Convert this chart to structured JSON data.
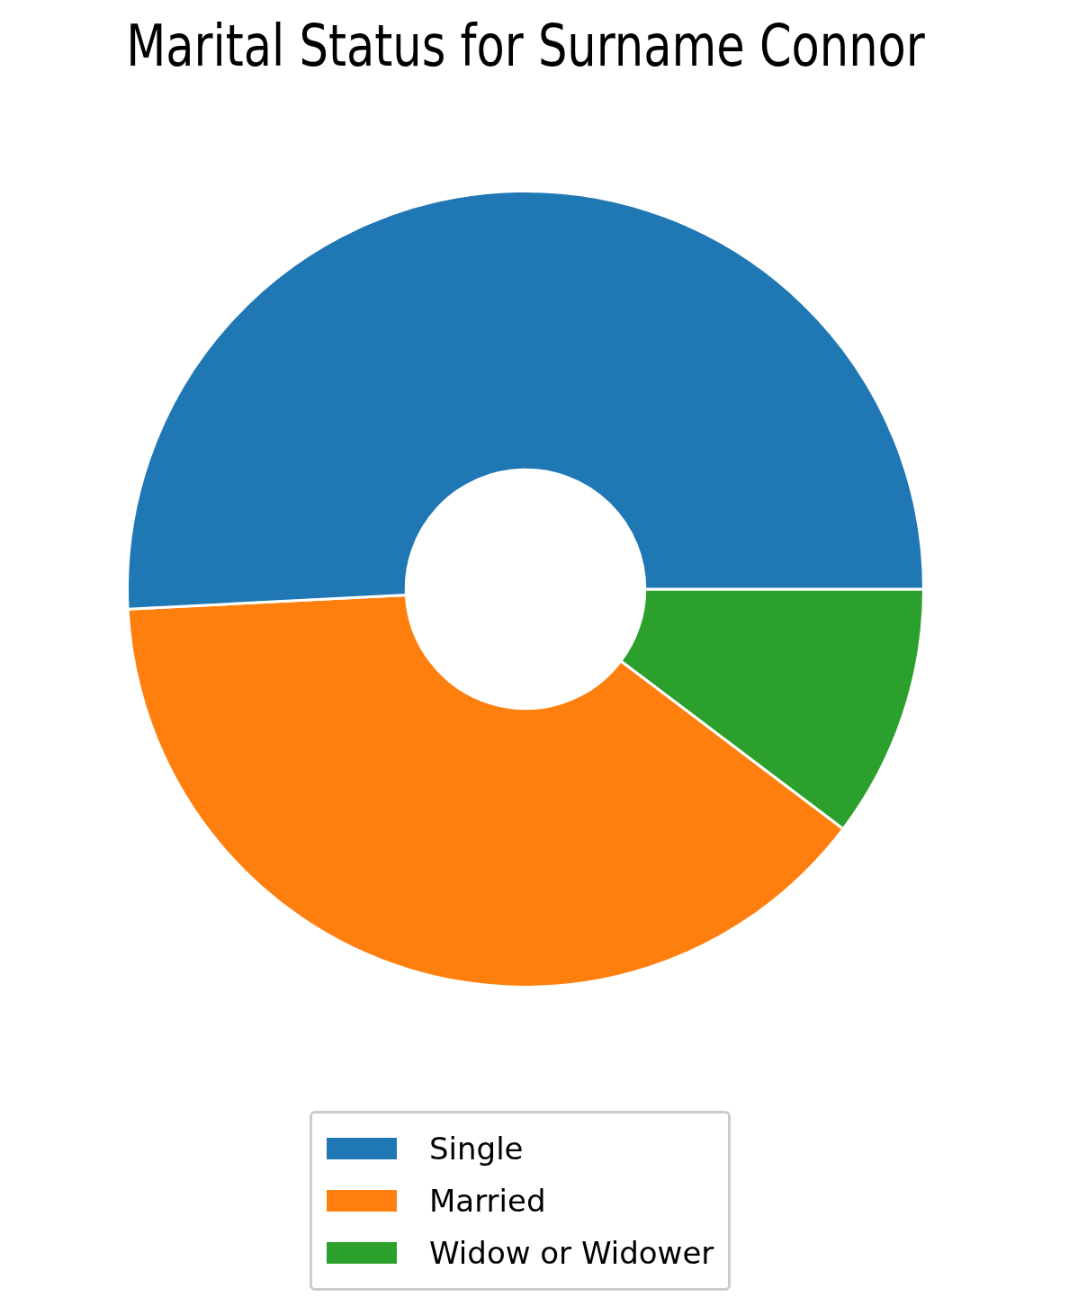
{
  "chart_data": {
    "type": "donut",
    "title": "Marital Status for Surname Connor",
    "categories": [
      "Single",
      "Married",
      "Widow or Widower"
    ],
    "values": [
      50.8,
      38.9,
      10.3
    ],
    "colors": [
      "#1f77b4",
      "#ff7f0e",
      "#2ca02c"
    ],
    "legend": "bottom"
  }
}
